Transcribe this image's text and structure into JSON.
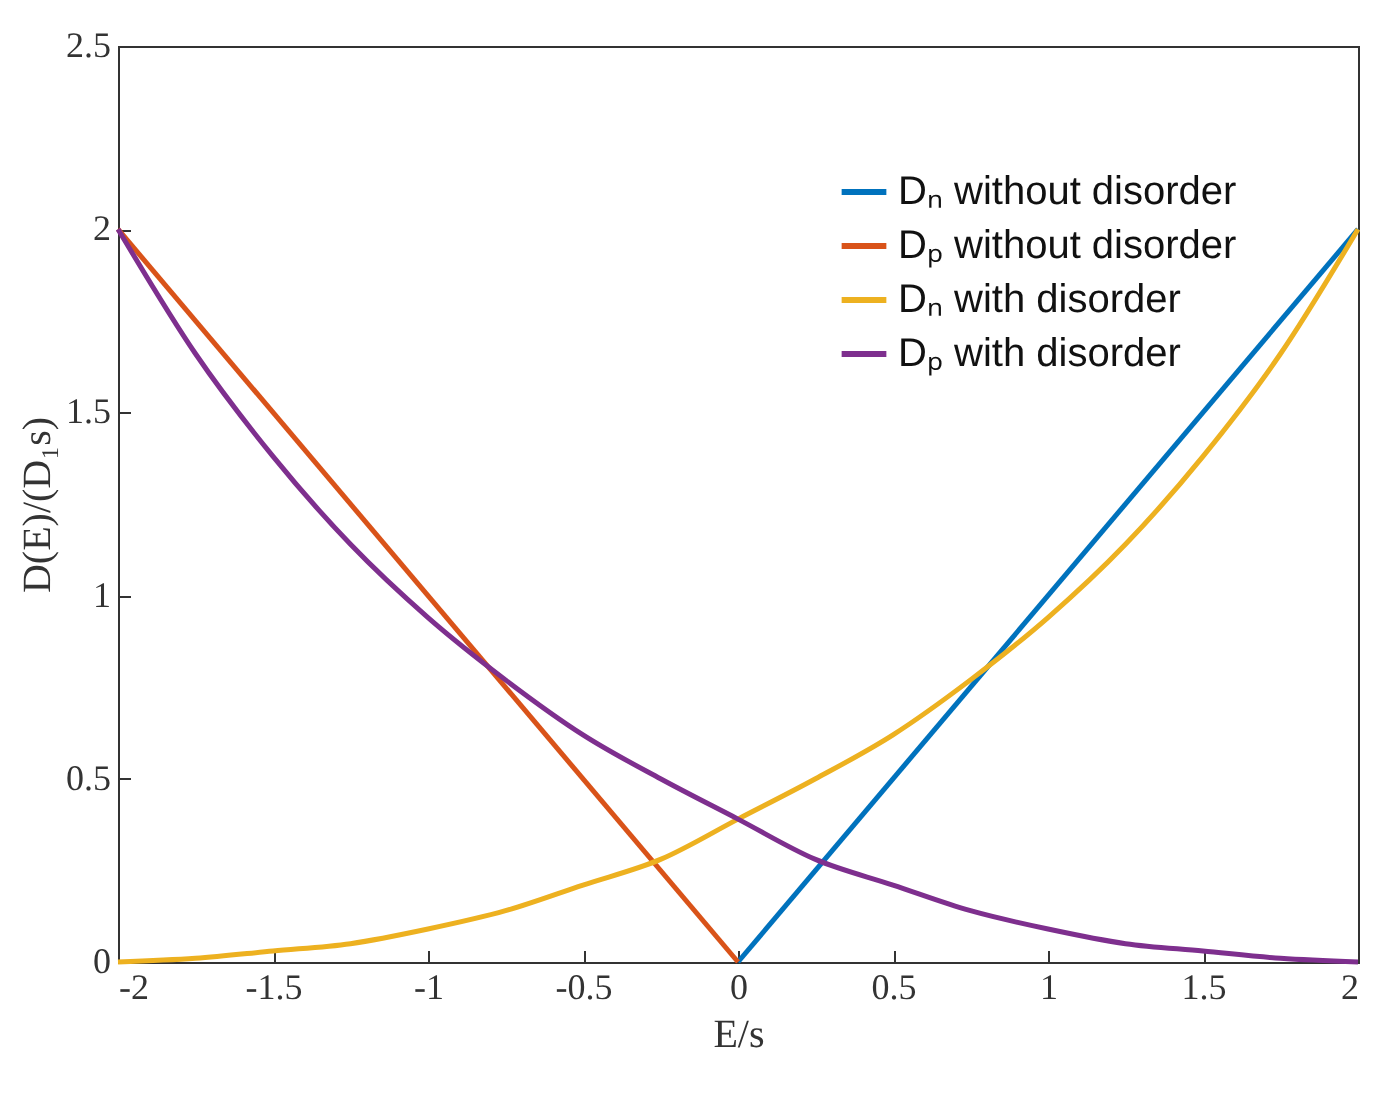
{
  "chart_data": {
    "type": "line",
    "xlabel": "E/s",
    "ylabel": "D(E)/(D₁s)",
    "xlim": [
      -2,
      2
    ],
    "ylim": [
      0,
      2.5
    ],
    "xticks": [
      -2,
      -1.5,
      -1,
      -0.5,
      0,
      0.5,
      1,
      1.5,
      2
    ],
    "yticks": [
      0,
      0.5,
      1,
      1.5,
      2,
      2.5
    ],
    "grid": false,
    "legend": "top right",
    "series": [
      {
        "name": "Dₙ without disorder",
        "color": "#0072bd",
        "x": [
          0,
          2
        ],
        "values": [
          0,
          2
        ]
      },
      {
        "name": "Dₚ without disorder",
        "color": "#d95319",
        "x": [
          -2,
          0
        ],
        "values": [
          2,
          0
        ]
      },
      {
        "name": "Dₙ with disorder",
        "color": "#edb120",
        "x": [
          -2,
          -1.75,
          -1.5,
          -1.25,
          -1,
          -0.75,
          -0.5,
          -0.25,
          0,
          0.25,
          0.5,
          0.75,
          1,
          1.25,
          1.5,
          1.75,
          2
        ],
        "values": [
          0,
          0.01,
          0.03,
          0.05,
          0.09,
          0.14,
          0.21,
          0.28,
          0.39,
          0.5,
          0.62,
          0.77,
          0.94,
          1.14,
          1.38,
          1.66,
          2
        ]
      },
      {
        "name": "Dₚ with disorder",
        "color": "#7e2f8e",
        "x": [
          -2,
          -1.75,
          -1.5,
          -1.25,
          -1,
          -0.75,
          -0.5,
          -0.25,
          0,
          0.25,
          0.5,
          0.75,
          1,
          1.25,
          1.5,
          1.75,
          2
        ],
        "values": [
          2,
          1.66,
          1.38,
          1.14,
          0.94,
          0.77,
          0.62,
          0.5,
          0.39,
          0.28,
          0.21,
          0.14,
          0.09,
          0.05,
          0.03,
          0.01,
          0
        ]
      }
    ]
  }
}
